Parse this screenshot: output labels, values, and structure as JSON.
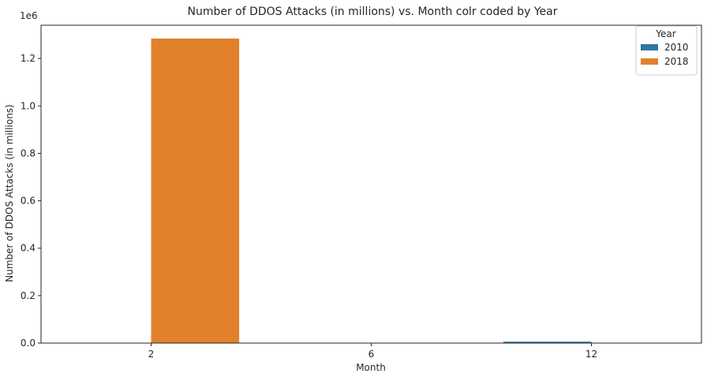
{
  "chart_data": {
    "type": "bar",
    "title": "Number of DDOS Attacks (in millions) vs. Month colr coded by Year",
    "xlabel": "Month",
    "ylabel": "Number of DDOS Attacks (in millions)",
    "y_offset_text": "1e6",
    "categories": [
      "2",
      "6",
      "12"
    ],
    "series": [
      {
        "name": "2010",
        "color": "#3274a1",
        "values": [
          0,
          1200,
          6000
        ]
      },
      {
        "name": "2018",
        "color": "#e1812c",
        "values": [
          1284000,
          0,
          0
        ]
      }
    ],
    "ylim": [
      0,
      1340000
    ],
    "yticks": [
      0,
      200000,
      400000,
      600000,
      800000,
      1000000,
      1200000
    ],
    "ytick_labels": [
      "0.0",
      "0.2",
      "0.4",
      "0.6",
      "0.8",
      "1.0",
      "1.2"
    ],
    "legend": {
      "title": "Year",
      "position": "top-right"
    },
    "grid": false
  }
}
